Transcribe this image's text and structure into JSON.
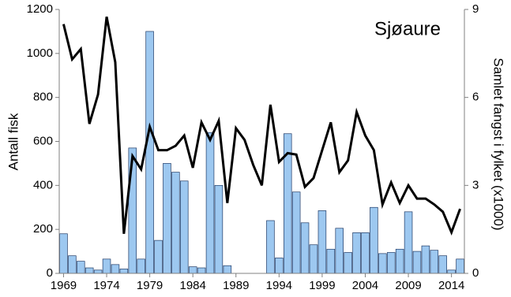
{
  "chart_data": {
    "type": "bar-line",
    "annotation": "Sjøaure",
    "ylabel": "Antall fisk",
    "y2label": "Samlet fangst i fylket (x1000)",
    "x": [
      1969,
      1970,
      1971,
      1972,
      1973,
      1974,
      1975,
      1976,
      1977,
      1978,
      1979,
      1980,
      1981,
      1982,
      1983,
      1984,
      1985,
      1986,
      1987,
      1988,
      1989,
      1990,
      1991,
      1992,
      1993,
      1994,
      1995,
      1996,
      1997,
      1998,
      1999,
      2000,
      2001,
      2002,
      2003,
      2004,
      2005,
      2006,
      2007,
      2008,
      2009,
      2010,
      2011,
      2012,
      2013,
      2014,
      2015
    ],
    "xlim": [
      1968.5,
      2015.5
    ],
    "xticks": [
      1969,
      1974,
      1979,
      1984,
      1989,
      1994,
      1999,
      2004,
      2009,
      2014
    ],
    "ylim": [
      0,
      1200
    ],
    "yticks": [
      0,
      200,
      400,
      600,
      800,
      1000,
      1200
    ],
    "y2lim": [
      0,
      9
    ],
    "y2ticks": [
      0,
      3,
      6,
      9
    ],
    "series": [
      {
        "type": "bar",
        "color": "#9dc8f0",
        "values": [
          180,
          80,
          55,
          25,
          15,
          65,
          40,
          20,
          570,
          65,
          1100,
          150,
          500,
          460,
          420,
          30,
          25,
          640,
          400,
          35,
          null,
          null,
          null,
          null,
          240,
          70,
          635,
          370,
          230,
          130,
          285,
          110,
          205,
          95,
          185,
          185,
          300,
          90,
          95,
          110,
          280,
          100,
          125,
          105,
          80,
          15,
          65
        ]
      },
      {
        "type": "line",
        "axis": "y2",
        "color": "#000000",
        "values": [
          8.5,
          7.3,
          7.65,
          5.1,
          6.1,
          8.75,
          7.2,
          1.35,
          4.0,
          3.55,
          5.0,
          4.2,
          4.2,
          4.35,
          4.7,
          3.6,
          5.15,
          4.55,
          5.2,
          2.4,
          4.95,
          4.55,
          3.7,
          3.0,
          5.75,
          3.8,
          4.1,
          4.05,
          2.95,
          3.25,
          4.2,
          5.15,
          3.45,
          3.85,
          5.5,
          4.7,
          4.2,
          2.35,
          3.1,
          2.4,
          3.0,
          2.55,
          2.55,
          2.35,
          2.1,
          1.4,
          2.2
        ]
      }
    ]
  }
}
